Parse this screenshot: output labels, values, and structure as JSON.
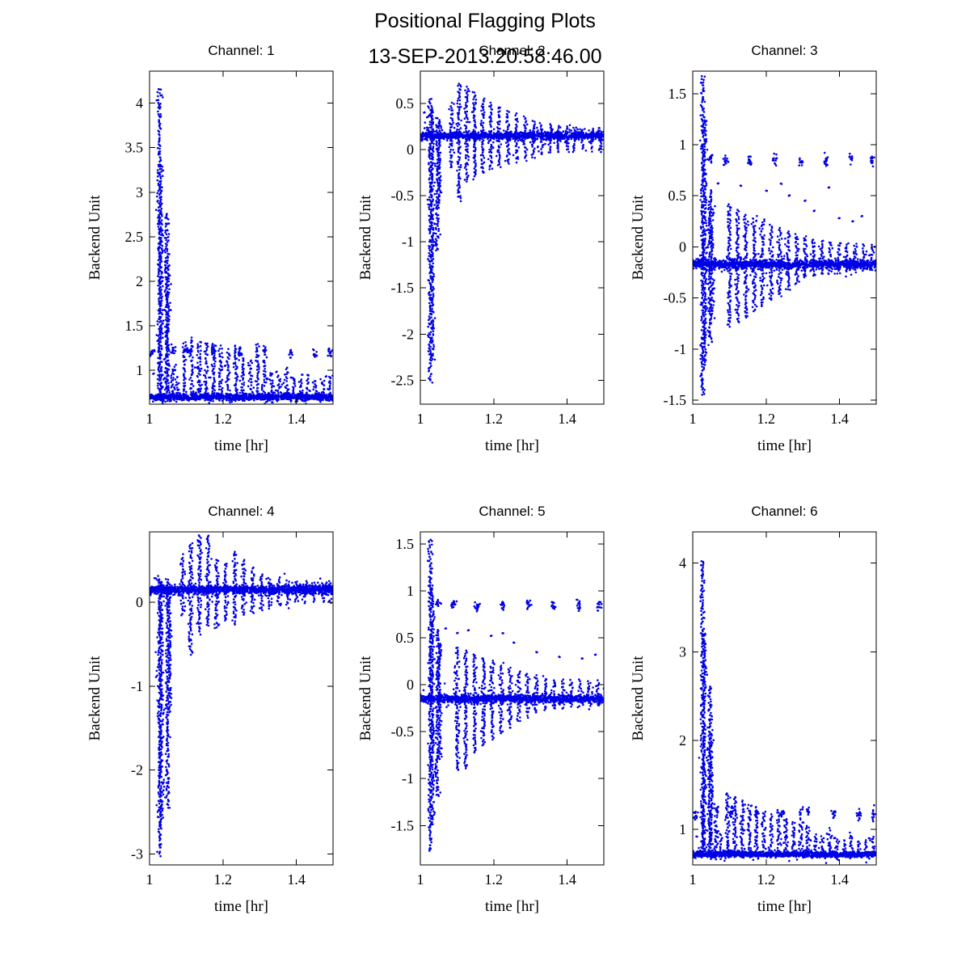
{
  "figure": {
    "title": "Positional Flagging Plots",
    "subtitle": "13-SEP-2013.20:58:46.00",
    "background": "#ffffff",
    "marker_color": "#0000E6",
    "axis_color": "#000000"
  },
  "chart_data": [
    {
      "type": "scatter",
      "title": "Channel: 1",
      "xlabel": "time [hr]",
      "ylabel": "Backend Unit",
      "xlim": [
        1.0,
        1.5
      ],
      "xticks": [
        1,
        1.2,
        1.4
      ],
      "xtick_labels": [
        "1",
        "1.2",
        "1.4"
      ],
      "ylim": [
        0.62,
        4.36
      ],
      "yticks": [
        4,
        3.5,
        3,
        2.5,
        2,
        1.5,
        1
      ],
      "ytick_labels": [
        "4",
        "3.5",
        "3",
        "2.5",
        "2",
        "1.5",
        "1"
      ],
      "baseline": {
        "y": 0.7,
        "noise": 0.018,
        "n": 1300
      },
      "spikes": [
        [
          1.027,
          0.68,
          4.17
        ],
        [
          1.031,
          0.68,
          3.3
        ],
        [
          1.046,
          0.68,
          2.77
        ],
        [
          1.05,
          0.68,
          2.3
        ],
        [
          1.063,
          0.68,
          1.05
        ],
        [
          1.076,
          0.68,
          0.92
        ],
        [
          1.095,
          0.68,
          1.32
        ],
        [
          1.115,
          0.68,
          1.36
        ],
        [
          1.135,
          0.68,
          1.33
        ],
        [
          1.155,
          0.68,
          1.31
        ],
        [
          1.174,
          0.68,
          1.3
        ],
        [
          1.194,
          0.68,
          1.26
        ],
        [
          1.214,
          0.68,
          1.22
        ],
        [
          1.234,
          0.68,
          1.28
        ],
        [
          1.254,
          0.68,
          1.18
        ],
        [
          1.274,
          0.68,
          1.12
        ],
        [
          1.294,
          0.68,
          1.3
        ],
        [
          1.313,
          0.68,
          1.12
        ],
        [
          1.333,
          0.68,
          0.98
        ],
        [
          1.353,
          0.68,
          0.95
        ],
        [
          1.373,
          0.68,
          1.02
        ],
        [
          1.393,
          0.68,
          0.92
        ],
        [
          1.413,
          0.68,
          0.9
        ],
        [
          1.432,
          0.68,
          0.96
        ],
        [
          1.452,
          0.68,
          0.88
        ],
        [
          1.472,
          0.68,
          0.9
        ],
        [
          1.491,
          0.68,
          0.95
        ]
      ],
      "clusters": [
        [
          1.008,
          1.18
        ],
        [
          1.065,
          1.22
        ],
        [
          1.105,
          1.22
        ],
        [
          1.175,
          1.21
        ],
        [
          1.245,
          1.2
        ],
        [
          1.315,
          1.22
        ],
        [
          1.385,
          1.2
        ],
        [
          1.452,
          1.18
        ],
        [
          1.492,
          1.2
        ]
      ],
      "singles": [
        [
          1.01,
          0.96
        ],
        [
          1.068,
          1.0
        ],
        [
          1.132,
          1.02
        ],
        [
          1.19,
          0.97
        ],
        [
          1.255,
          0.95
        ],
        [
          1.32,
          0.9
        ],
        [
          1.385,
          0.92
        ],
        [
          1.45,
          0.88
        ],
        [
          1.205,
          1.05
        ],
        [
          1.275,
          1.02
        ],
        [
          1.345,
          0.98
        ],
        [
          1.415,
          0.95
        ],
        [
          1.48,
          0.93
        ]
      ]
    },
    {
      "type": "scatter",
      "title": "Channel: 2",
      "xlabel": "time [hr]",
      "ylabel": "Backend Unit",
      "xlim": [
        1.0,
        1.5
      ],
      "xticks": [
        1,
        1.2,
        1.4
      ],
      "xtick_labels": [
        "1",
        "1.2",
        "1.4"
      ],
      "ylim": [
        -2.76,
        0.85
      ],
      "yticks": [
        0.5,
        0,
        -0.5,
        -1,
        -1.5,
        -2,
        -2.5
      ],
      "ytick_labels": [
        "0.5",
        "0",
        "-0.5",
        "-1",
        "-1.5",
        "-2",
        "-2.5"
      ],
      "baseline": {
        "y": 0.15,
        "noise": 0.02,
        "n": 1300
      },
      "spikes": [
        [
          1.027,
          -2.52,
          0.55
        ],
        [
          1.033,
          -2.28,
          0.45
        ],
        [
          1.047,
          -1.1,
          0.35
        ],
        [
          1.052,
          -0.6,
          0.3
        ],
        [
          1.085,
          -0.2,
          0.5
        ],
        [
          1.105,
          -0.55,
          0.72
        ],
        [
          1.126,
          -0.35,
          0.68
        ],
        [
          1.148,
          -0.3,
          0.62
        ],
        [
          1.17,
          -0.25,
          0.55
        ],
        [
          1.192,
          -0.22,
          0.5
        ],
        [
          1.214,
          -0.18,
          0.46
        ],
        [
          1.238,
          -0.15,
          0.42
        ],
        [
          1.262,
          -0.13,
          0.38
        ],
        [
          1.285,
          -0.11,
          0.35
        ],
        [
          1.308,
          -0.09,
          0.31
        ],
        [
          1.33,
          -0.06,
          0.28
        ],
        [
          1.353,
          -0.04,
          0.27
        ],
        [
          1.376,
          -0.03,
          0.26
        ],
        [
          1.399,
          -0.02,
          0.25
        ],
        [
          1.421,
          -0.02,
          0.24
        ],
        [
          1.444,
          -0.01,
          0.23
        ],
        [
          1.467,
          -0.01,
          0.23
        ],
        [
          1.49,
          -0.02,
          0.24
        ]
      ],
      "clusters": [],
      "singles": [
        [
          1.01,
          0.4
        ],
        [
          1.018,
          0.35
        ]
      ]
    },
    {
      "type": "scatter",
      "title": "Channel: 3",
      "xlabel": "time [hr]",
      "ylabel": "Backend Unit",
      "xlim": [
        1.0,
        1.5
      ],
      "xticks": [
        1,
        1.2,
        1.4
      ],
      "xtick_labels": [
        "1",
        "1.2",
        "1.4"
      ],
      "ylim": [
        -1.54,
        1.72
      ],
      "yticks": [
        1.5,
        1,
        0.5,
        0,
        -0.5,
        -1,
        -1.5
      ],
      "ytick_labels": [
        "1.5",
        "1",
        "0.5",
        "0",
        "-0.5",
        "-1",
        "-1.5"
      ],
      "baseline": {
        "y": -0.17,
        "noise": 0.022,
        "n": 1300
      },
      "spikes": [
        [
          1.027,
          -1.45,
          1.67
        ],
        [
          1.033,
          -1.15,
          1.25
        ],
        [
          1.047,
          -0.95,
          0.55
        ],
        [
          1.052,
          -0.7,
          0.4
        ],
        [
          1.1,
          -0.78,
          0.42
        ],
        [
          1.122,
          -0.74,
          0.36
        ],
        [
          1.145,
          -0.7,
          0.32
        ],
        [
          1.168,
          -0.63,
          0.3
        ],
        [
          1.19,
          -0.58,
          0.26
        ],
        [
          1.213,
          -0.52,
          0.22
        ],
        [
          1.237,
          -0.48,
          0.18
        ],
        [
          1.26,
          -0.43,
          0.15
        ],
        [
          1.283,
          -0.37,
          0.12
        ],
        [
          1.306,
          -0.31,
          0.1
        ],
        [
          1.329,
          -0.28,
          0.08
        ],
        [
          1.352,
          -0.27,
          0.06
        ],
        [
          1.375,
          -0.26,
          0.05
        ],
        [
          1.398,
          -0.25,
          0.04
        ],
        [
          1.42,
          -0.24,
          0.03
        ],
        [
          1.443,
          -0.23,
          0.03
        ],
        [
          1.466,
          -0.23,
          0.02
        ],
        [
          1.489,
          -0.24,
          0.03
        ]
      ],
      "clusters": [
        [
          1.048,
          0.87
        ],
        [
          1.09,
          0.84
        ],
        [
          1.155,
          0.85
        ],
        [
          1.224,
          0.86
        ],
        [
          1.294,
          0.84
        ],
        [
          1.363,
          0.85
        ],
        [
          1.432,
          0.86
        ],
        [
          1.488,
          0.84
        ]
      ],
      "singles": [
        [
          1.068,
          0.62
        ],
        [
          1.13,
          0.6
        ],
        [
          1.2,
          0.55
        ],
        [
          1.262,
          0.5
        ],
        [
          1.33,
          0.35
        ],
        [
          1.398,
          0.28
        ],
        [
          1.46,
          0.3
        ],
        [
          1.24,
          0.62
        ],
        [
          1.305,
          0.45
        ],
        [
          1.37,
          0.58
        ],
        [
          1.435,
          0.25
        ]
      ]
    },
    {
      "type": "scatter",
      "title": "Channel: 4",
      "xlabel": "time [hr]",
      "ylabel": "Backend Unit",
      "xlim": [
        1.0,
        1.5
      ],
      "xticks": [
        1,
        1.2,
        1.4
      ],
      "xtick_labels": [
        "1",
        "1.2",
        "1.4"
      ],
      "ylim": [
        -3.13,
        0.84
      ],
      "yticks": [
        0,
        -1,
        -2,
        -3
      ],
      "ytick_labels": [
        "0",
        "-1",
        "-2",
        "-3"
      ],
      "baseline": {
        "y": 0.15,
        "noise": 0.025,
        "n": 1300
      },
      "spikes": [
        [
          1.027,
          -3.02,
          0.3
        ],
        [
          1.032,
          -2.7,
          0.25
        ],
        [
          1.049,
          -2.45,
          0.28
        ],
        [
          1.054,
          -1.3,
          0.22
        ],
        [
          1.09,
          -0.15,
          0.55
        ],
        [
          1.112,
          -0.62,
          0.7
        ],
        [
          1.136,
          -0.38,
          0.8
        ],
        [
          1.16,
          -0.28,
          0.8
        ],
        [
          1.184,
          -0.32,
          0.52
        ],
        [
          1.208,
          -0.22,
          0.46
        ],
        [
          1.232,
          -0.26,
          0.6
        ],
        [
          1.256,
          -0.16,
          0.5
        ],
        [
          1.28,
          -0.13,
          0.4
        ],
        [
          1.304,
          -0.1,
          0.32
        ],
        [
          1.328,
          -0.07,
          0.28
        ],
        [
          1.352,
          -0.04,
          0.27
        ],
        [
          1.376,
          -0.02,
          0.26
        ],
        [
          1.4,
          0.0,
          0.25
        ],
        [
          1.424,
          0.0,
          0.24
        ],
        [
          1.448,
          0.01,
          0.23
        ],
        [
          1.472,
          0.01,
          0.23
        ],
        [
          1.493,
          0.0,
          0.24
        ]
      ],
      "clusters": [],
      "singles": []
    },
    {
      "type": "scatter",
      "title": "Channel: 5",
      "xlabel": "time [hr]",
      "ylabel": "Backend Unit",
      "xlim": [
        1.0,
        1.5
      ],
      "xticks": [
        1,
        1.2,
        1.4
      ],
      "xtick_labels": [
        "1",
        "1.2",
        "1.4"
      ],
      "ylim": [
        -1.92,
        1.63
      ],
      "yticks": [
        1.5,
        1,
        0.5,
        0,
        -0.5,
        -1,
        -1.5
      ],
      "ytick_labels": [
        "1.5",
        "1",
        "0.5",
        "0",
        "-0.5",
        "-1",
        "-1.5"
      ],
      "baseline": {
        "y": -0.15,
        "noise": 0.02,
        "n": 1300
      },
      "spikes": [
        [
          1.027,
          -1.78,
          1.55
        ],
        [
          1.033,
          -1.5,
          1.05
        ],
        [
          1.047,
          -1.2,
          0.6
        ],
        [
          1.052,
          -0.8,
          0.45
        ],
        [
          1.1,
          -0.92,
          0.4
        ],
        [
          1.124,
          -0.88,
          0.36
        ],
        [
          1.148,
          -0.72,
          0.32
        ],
        [
          1.172,
          -0.65,
          0.3
        ],
        [
          1.196,
          -0.58,
          0.26
        ],
        [
          1.22,
          -0.52,
          0.22
        ],
        [
          1.244,
          -0.46,
          0.18
        ],
        [
          1.268,
          -0.4,
          0.14
        ],
        [
          1.292,
          -0.34,
          0.12
        ],
        [
          1.316,
          -0.3,
          0.1
        ],
        [
          1.34,
          -0.28,
          0.08
        ],
        [
          1.364,
          -0.26,
          0.06
        ],
        [
          1.388,
          -0.24,
          0.05
        ],
        [
          1.412,
          -0.23,
          0.05
        ],
        [
          1.436,
          -0.22,
          0.04
        ],
        [
          1.46,
          -0.22,
          0.04
        ],
        [
          1.484,
          -0.23,
          0.04
        ]
      ],
      "clusters": [
        [
          1.048,
          0.88
        ],
        [
          1.09,
          0.85
        ],
        [
          1.155,
          0.86
        ],
        [
          1.224,
          0.85
        ],
        [
          1.294,
          0.86
        ],
        [
          1.363,
          0.85
        ],
        [
          1.432,
          0.86
        ],
        [
          1.488,
          0.84
        ]
      ],
      "singles": [
        [
          1.068,
          0.6
        ],
        [
          1.13,
          0.58
        ],
        [
          1.192,
          0.52
        ],
        [
          1.254,
          0.45
        ],
        [
          1.316,
          0.35
        ],
        [
          1.378,
          0.3
        ],
        [
          1.44,
          0.28
        ],
        [
          1.476,
          0.32
        ],
        [
          1.1,
          0.55
        ],
        [
          1.224,
          0.55
        ]
      ]
    },
    {
      "type": "scatter",
      "title": "Channel: 6",
      "xlabel": "time [hr]",
      "ylabel": "Backend Unit",
      "xlim": [
        1.0,
        1.5
      ],
      "xticks": [
        1,
        1.2,
        1.4
      ],
      "xtick_labels": [
        "1",
        "1.2",
        "1.4"
      ],
      "ylim": [
        0.6,
        4.35
      ],
      "yticks": [
        4,
        3,
        2,
        1
      ],
      "ytick_labels": [
        "4",
        "3",
        "2",
        "1"
      ],
      "baseline": {
        "y": 0.72,
        "noise": 0.015,
        "n": 1300
      },
      "spikes": [
        [
          1.027,
          0.7,
          4.02
        ],
        [
          1.031,
          0.7,
          3.2
        ],
        [
          1.046,
          0.7,
          2.62
        ],
        [
          1.05,
          0.7,
          2.1
        ],
        [
          1.063,
          0.7,
          1.1
        ],
        [
          1.076,
          0.7,
          0.95
        ],
        [
          1.095,
          0.7,
          1.42
        ],
        [
          1.115,
          0.7,
          1.38
        ],
        [
          1.135,
          0.7,
          1.32
        ],
        [
          1.155,
          0.7,
          1.28
        ],
        [
          1.174,
          0.7,
          1.25
        ],
        [
          1.194,
          0.7,
          1.2
        ],
        [
          1.214,
          0.7,
          1.16
        ],
        [
          1.234,
          0.7,
          1.22
        ],
        [
          1.254,
          0.7,
          1.12
        ],
        [
          1.274,
          0.7,
          1.08
        ],
        [
          1.294,
          0.7,
          1.25
        ],
        [
          1.313,
          0.7,
          1.05
        ],
        [
          1.333,
          0.7,
          0.95
        ],
        [
          1.353,
          0.7,
          0.92
        ],
        [
          1.373,
          0.7,
          1.0
        ],
        [
          1.393,
          0.7,
          0.9
        ],
        [
          1.413,
          0.7,
          0.88
        ],
        [
          1.432,
          0.7,
          0.95
        ],
        [
          1.452,
          0.7,
          0.85
        ],
        [
          1.472,
          0.7,
          0.88
        ],
        [
          1.491,
          0.7,
          0.92
        ]
      ],
      "clusters": [
        [
          1.008,
          1.15
        ],
        [
          1.065,
          1.2
        ],
        [
          1.105,
          1.2
        ],
        [
          1.175,
          1.19
        ],
        [
          1.245,
          1.18
        ],
        [
          1.315,
          1.2
        ],
        [
          1.385,
          1.18
        ],
        [
          1.452,
          1.16
        ],
        [
          1.492,
          1.18
        ]
      ],
      "singles": [
        [
          1.01,
          0.92
        ],
        [
          1.068,
          0.98
        ],
        [
          1.132,
          1.0
        ],
        [
          1.19,
          0.95
        ],
        [
          1.255,
          0.92
        ],
        [
          1.32,
          0.88
        ],
        [
          1.385,
          0.9
        ],
        [
          1.45,
          0.86
        ],
        [
          1.48,
          0.9
        ]
      ]
    }
  ]
}
